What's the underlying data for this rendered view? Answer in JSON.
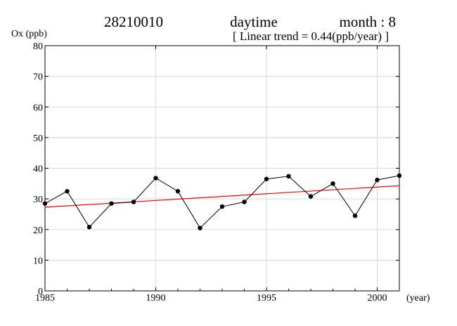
{
  "header": {
    "station": "28210010",
    "period": "daytime",
    "month": "month : 8",
    "trend_note": "[ Linear trend = 0.44(ppb/year) ]"
  },
  "chart_data": {
    "type": "line",
    "ylabel": "Ox (ppb)",
    "xlabel": "(year)",
    "xlim": [
      1985,
      2001
    ],
    "ylim": [
      0,
      80
    ],
    "x_ticks": [
      1985,
      1990,
      1995,
      2000
    ],
    "y_ticks": [
      0,
      10,
      20,
      30,
      40,
      50,
      60,
      70,
      80
    ],
    "grid": true,
    "series": [
      {
        "x": [
          1985,
          1986,
          1987,
          1988,
          1989,
          1990,
          1991,
          1992,
          1993,
          1994,
          1995,
          1996,
          1997,
          1998,
          1999,
          2000,
          2001
        ],
        "values": [
          28.5,
          32.5,
          20.8,
          28.5,
          29.0,
          36.8,
          32.5,
          20.5,
          27.5,
          29.0,
          36.5,
          37.4,
          30.8,
          35.0,
          24.5,
          36.2,
          37.6
        ],
        "color": "#000000",
        "marker": "filled-circle"
      }
    ],
    "trend_line": {
      "x": [
        1985,
        2001
      ],
      "values": [
        27.3,
        34.3
      ],
      "color": "#ff0000"
    }
  }
}
